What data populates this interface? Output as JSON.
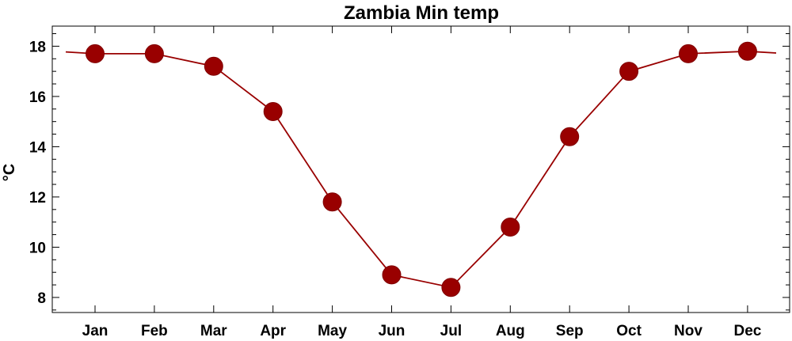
{
  "chart_data": {
    "type": "line",
    "title": "Zambia Min temp",
    "xlabel": "",
    "ylabel": "°C",
    "categories": [
      "Jan",
      "Feb",
      "Mar",
      "Apr",
      "May",
      "Jun",
      "Jul",
      "Aug",
      "Sep",
      "Oct",
      "Nov",
      "Dec"
    ],
    "values": [
      17.7,
      17.7,
      17.2,
      15.4,
      11.8,
      8.9,
      8.4,
      10.8,
      14.4,
      17.0,
      17.7,
      17.8
    ],
    "ylim": [
      7.4,
      18.8
    ],
    "yticks": [
      8,
      10,
      12,
      14,
      16,
      18
    ],
    "ytick_labels": [
      "8",
      "10",
      "12",
      "14",
      "16",
      "18"
    ],
    "grid": false,
    "legend": "none",
    "colors": {
      "series": "#990000",
      "marker_edge": "#800000",
      "axes": "#000000"
    }
  }
}
